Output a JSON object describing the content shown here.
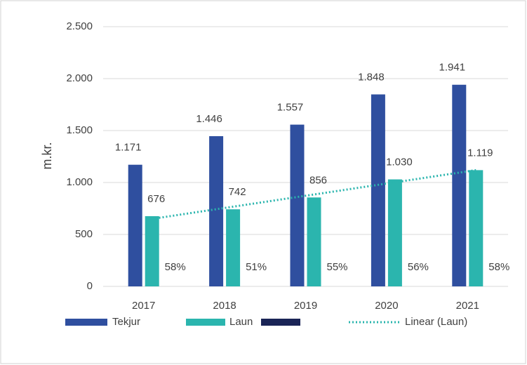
{
  "chart_data": {
    "type": "bar",
    "y_label": "m.kr.",
    "categories": [
      "2017",
      "2018",
      "2019",
      "2020",
      "2021"
    ],
    "series": [
      {
        "name": "Tekjur",
        "color": "#2f4f9f",
        "values": [
          1171,
          1446,
          1557,
          1848,
          1941
        ],
        "value_labels": [
          "1.171",
          "1.446",
          "1.557",
          "1.848",
          "1.941"
        ]
      },
      {
        "name": "Laun",
        "color": "#2bb5ae",
        "values": [
          676,
          742,
          856,
          1030,
          1119
        ],
        "value_labels": [
          "676",
          "742",
          "856",
          "1.030",
          "1.119"
        ]
      }
    ],
    "share_labels": {
      "values": [
        58,
        51,
        55,
        56,
        58
      ],
      "value_labels": [
        "58%",
        "51%",
        "55%",
        "56%",
        "58%"
      ]
    },
    "trendline": {
      "name": "Linear (Laun)",
      "of_series": 1,
      "color": "#2bb5ae"
    },
    "ylim": [
      0,
      2500
    ],
    "yticks": [
      0,
      500,
      {
        "value": 1000,
        "label": "1.000"
      },
      {
        "value": 1500,
        "label": "1.500"
      },
      {
        "value": 2000,
        "label": "2.000"
      },
      {
        "value": 2500,
        "label": "2.500"
      }
    ],
    "grid": true
  }
}
